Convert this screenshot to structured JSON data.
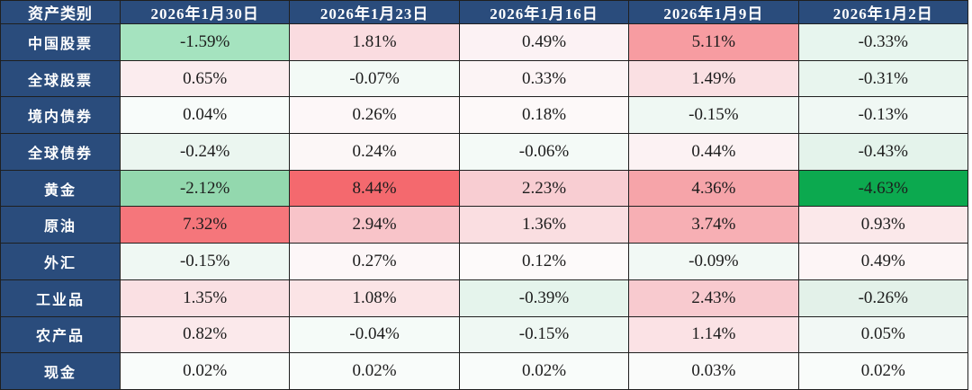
{
  "colors": {
    "header_bg": "#2A4C7C",
    "header_text": "#FFFFFF",
    "border": "#1F1F1F",
    "cell_text": "#1C1C1C",
    "page_bg": "#FFFFFF",
    "strong_positive": "#F4696E",
    "strong_negative": "#0CA94F"
  },
  "chart_data": {
    "type": "heatmap",
    "title": "",
    "columns": [
      "资产类别",
      "2026年1月30日",
      "2026年1月23日",
      "2026年1月16日",
      "2026年1月9日",
      "2026年1月2日"
    ],
    "rows": [
      {
        "category": "中国股票",
        "display": [
          "-1.59%",
          "1.81%",
          "0.49%",
          "5.11%",
          "-0.33%"
        ],
        "values_pct": [
          -1.59,
          1.81,
          0.49,
          5.11,
          -0.33
        ],
        "cell_colors": [
          "#A5E3BF",
          "#FADCE0",
          "#FCF2F4",
          "#F79CA1",
          "#E7F5EE"
        ]
      },
      {
        "category": "全球股票",
        "display": [
          "0.65%",
          "-0.07%",
          "0.33%",
          "1.49%",
          "-0.31%"
        ],
        "values_pct": [
          0.65,
          -0.07,
          0.33,
          1.49,
          -0.31
        ],
        "cell_colors": [
          "#FBECEE",
          "#F3FAF6",
          "#FCF4F5",
          "#FAE0E3",
          "#E8F5EE"
        ]
      },
      {
        "category": "境内债券",
        "display": [
          "0.04%",
          "0.26%",
          "0.18%",
          "-0.15%",
          "-0.13%"
        ],
        "values_pct": [
          0.04,
          0.26,
          0.18,
          -0.15,
          -0.13
        ],
        "cell_colors": [
          "#F8FCFA",
          "#FDF7F8",
          "#FDF9F9",
          "#EFF8F3",
          "#F0F8F4"
        ]
      },
      {
        "category": "全球债券",
        "display": [
          "-0.24%",
          "0.24%",
          "-0.06%",
          "0.44%",
          "-0.43%"
        ],
        "values_pct": [
          -0.24,
          0.24,
          -0.06,
          0.44,
          -0.43
        ],
        "cell_colors": [
          "#EBF6F0",
          "#FCF7F7",
          "#F4FAF7",
          "#FCF2F3",
          "#E4F3EB"
        ]
      },
      {
        "category": "黄金",
        "display": [
          "-2.12%",
          "8.44%",
          "2.23%",
          "4.36%",
          "-4.63%"
        ],
        "values_pct": [
          -2.12,
          8.44,
          2.23,
          4.36,
          -4.63
        ],
        "cell_colors": [
          "#93D8AE",
          "#F4696E",
          "#F8CDD2",
          "#F6A4A9",
          "#0CA94F"
        ]
      },
      {
        "category": "原油",
        "display": [
          "7.32%",
          "2.94%",
          "1.36%",
          "3.74%",
          "0.93%"
        ],
        "values_pct": [
          7.32,
          2.94,
          1.36,
          3.74,
          0.93
        ],
        "cell_colors": [
          "#F5767B",
          "#F8C4C9",
          "#FADEE1",
          "#F7AFB4",
          "#FBE8EA"
        ]
      },
      {
        "category": "外汇",
        "display": [
          "-0.15%",
          "0.27%",
          "0.12%",
          "-0.09%",
          "0.49%"
        ],
        "values_pct": [
          -0.15,
          0.27,
          0.12,
          -0.09,
          0.49
        ],
        "cell_colors": [
          "#EFF8F3",
          "#FDF7F8",
          "#FDFAFA",
          "#F2F9F5",
          "#FDF5F6"
        ]
      },
      {
        "category": "工业品",
        "display": [
          "1.35%",
          "1.08%",
          "-0.39%",
          "2.43%",
          "-0.26%"
        ],
        "values_pct": [
          1.35,
          1.08,
          -0.39,
          2.43,
          -0.26
        ],
        "cell_colors": [
          "#FAE0E3",
          "#FBE4E6",
          "#E5F4EC",
          "#F8CACF",
          "#E3F1E9"
        ]
      },
      {
        "category": "农产品",
        "display": [
          "0.82%",
          "-0.04%",
          "-0.15%",
          "1.14%",
          "0.05%"
        ],
        "values_pct": [
          0.82,
          -0.04,
          -0.15,
          1.14,
          0.05
        ],
        "cell_colors": [
          "#FBE9EB",
          "#F5FBF8",
          "#EFF8F3",
          "#FBE2E5",
          "#F2F8F5"
        ]
      },
      {
        "category": "现金",
        "display": [
          "0.02%",
          "0.02%",
          "0.02%",
          "0.03%",
          "0.02%"
        ],
        "values_pct": [
          0.02,
          0.02,
          0.02,
          0.03,
          0.02
        ],
        "cell_colors": [
          "#F9FCFA",
          "#F9FCFA",
          "#F9FCFA",
          "#FAFBFA",
          "#F9FCFA"
        ]
      }
    ]
  }
}
